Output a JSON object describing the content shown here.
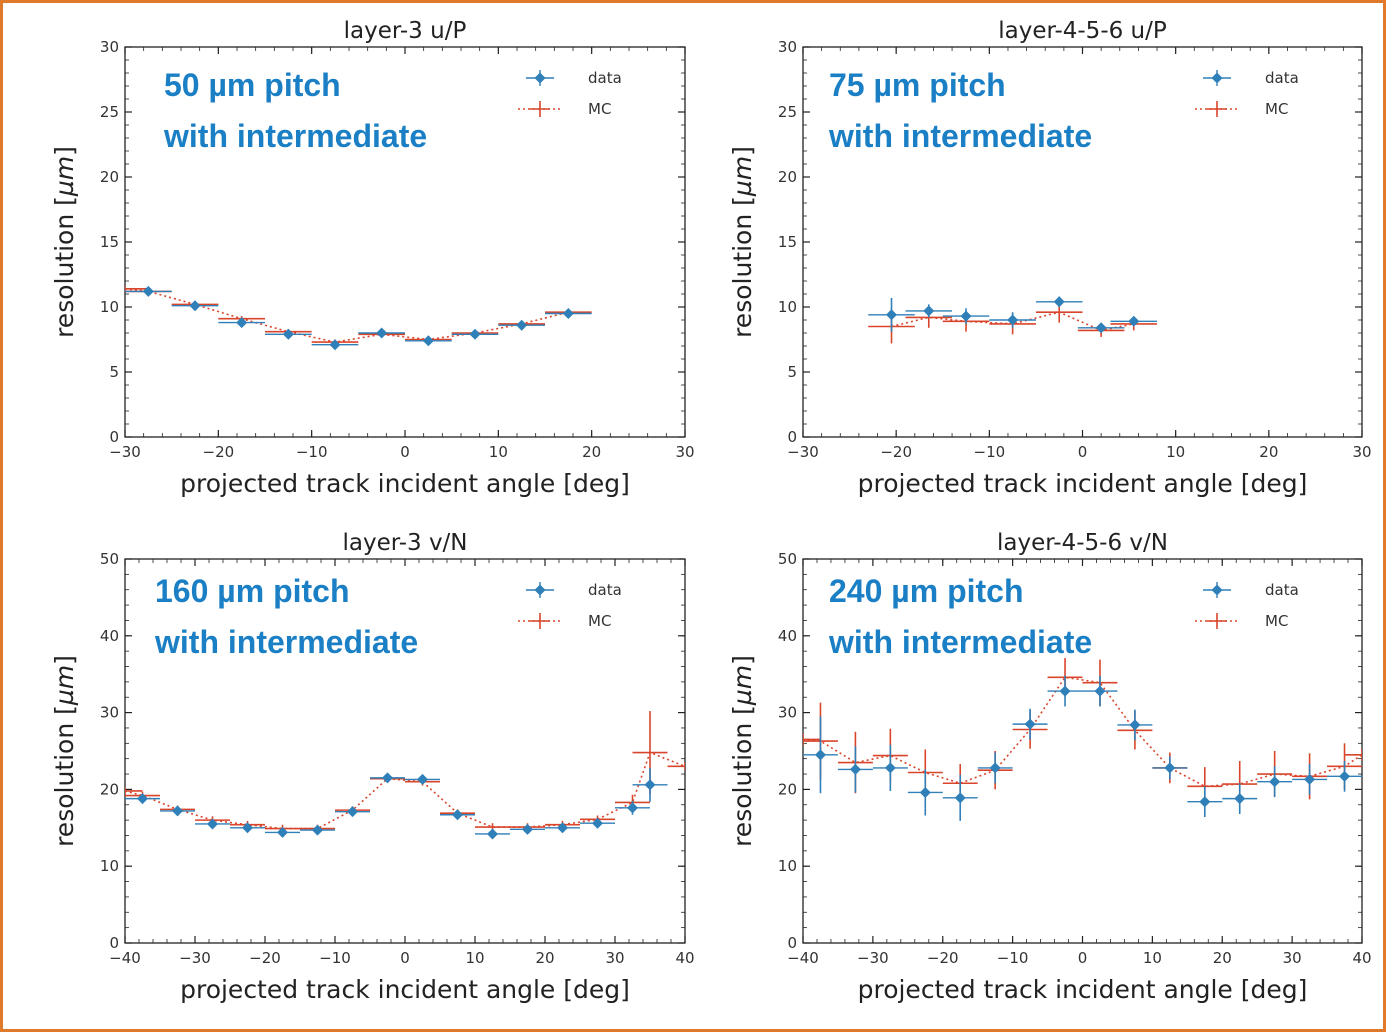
{
  "colors": {
    "frame": "#e07a2a",
    "data": "#2f7fb8",
    "mc": "#d9452b",
    "annotation": "#1a7fc4",
    "axis": "#222222"
  },
  "panels": [
    {
      "title": "layer-3 u/P",
      "annotation": [
        "50 µm pitch",
        "with intermediate"
      ],
      "legend": {
        "data": "data",
        "mc": "MC"
      },
      "xlabel": "projected track incident angle [deg]",
      "ylabel": "resolution [µm]",
      "ylabel_plain": "resolution [",
      "ylabel_unit": "µm",
      "ylabel_close": "]"
    },
    {
      "title": "layer-4-5-6 u/P",
      "annotation": [
        "75 µm pitch",
        "with intermediate"
      ],
      "legend": {
        "data": "data",
        "mc": "MC"
      },
      "xlabel": "projected track incident angle [deg]",
      "ylabel": "resolution [µm]",
      "ylabel_plain": "resolution [",
      "ylabel_unit": "µm",
      "ylabel_close": "]"
    },
    {
      "title": "layer-3 v/N",
      "annotation": [
        "160 µm pitch",
        "with intermediate"
      ],
      "legend": {
        "data": "data",
        "mc": "MC"
      },
      "xlabel": "projected track incident angle [deg]",
      "ylabel": "resolution [µm]",
      "ylabel_plain": "resolution [",
      "ylabel_unit": "µm",
      "ylabel_close": "]"
    },
    {
      "title": "layer-4-5-6 v/N",
      "annotation": [
        "240 µm pitch",
        "with intermediate"
      ],
      "legend": {
        "data": "data",
        "mc": "MC"
      },
      "xlabel": "projected track incident angle [deg]",
      "ylabel": "resolution [µm]",
      "ylabel_plain": "resolution [",
      "ylabel_unit": "µm",
      "ylabel_close": "]"
    }
  ],
  "chart_data": [
    {
      "type": "scatter",
      "title": "layer-3 u/P",
      "xlabel": "projected track incident angle [deg]",
      "ylabel": "resolution [µm]",
      "xlim": [
        -30,
        30
      ],
      "ylim": [
        0,
        30
      ],
      "xticks": [
        -30,
        -20,
        -10,
        0,
        10,
        20,
        30
      ],
      "yticks": [
        0,
        5,
        10,
        15,
        20,
        25,
        30
      ],
      "legend_position": "top-right",
      "series": [
        {
          "name": "data",
          "x": [
            -27.5,
            -22.5,
            -17.5,
            -12.5,
            -7.5,
            -2.5,
            2.5,
            7.5,
            12.5,
            17.5
          ],
          "y": [
            11.2,
            10.1,
            8.8,
            7.9,
            7.1,
            8.0,
            7.4,
            7.9,
            8.6,
            9.5
          ],
          "yerr": [
            0.3,
            0.3,
            0.3,
            0.3,
            0.3,
            0.3,
            0.3,
            0.3,
            0.3,
            0.3
          ]
        },
        {
          "name": "MC",
          "x": [
            -30,
            -27.5,
            -22.5,
            -17.5,
            -12.5,
            -7.5,
            -2.5,
            2.5,
            7.5,
            12.5,
            17.5
          ],
          "y": [
            11.4,
            11.2,
            10.2,
            9.1,
            8.1,
            7.3,
            7.9,
            7.5,
            8.0,
            8.7,
            9.6
          ],
          "yerr": [
            0.2,
            0.2,
            0.2,
            0.2,
            0.2,
            0.2,
            0.2,
            0.2,
            0.2,
            0.2,
            0.2
          ]
        }
      ]
    },
    {
      "type": "scatter",
      "title": "layer-4-5-6 u/P",
      "xlabel": "projected track incident angle [deg]",
      "ylabel": "resolution [µm]",
      "xlim": [
        -30,
        30
      ],
      "ylim": [
        0,
        30
      ],
      "xticks": [
        -30,
        -20,
        -10,
        0,
        10,
        20,
        30
      ],
      "yticks": [
        0,
        5,
        10,
        15,
        20,
        25,
        30
      ],
      "legend_position": "top-right",
      "series": [
        {
          "name": "data",
          "x": [
            -20.5,
            -16.5,
            -12.5,
            -7.5,
            -2.5,
            2.0,
            5.5
          ],
          "y": [
            9.4,
            9.7,
            9.3,
            9.0,
            10.4,
            8.4,
            8.9
          ],
          "yerr": [
            1.3,
            0.5,
            0.6,
            0.6,
            0.4,
            0.3,
            0.3
          ]
        },
        {
          "name": "MC",
          "x": [
            -20.5,
            -16.5,
            -12.5,
            -7.5,
            -2.5,
            2.0,
            5.5
          ],
          "y": [
            8.5,
            9.2,
            8.9,
            8.7,
            9.6,
            8.2,
            8.7
          ],
          "yerr": [
            1.3,
            0.8,
            0.8,
            0.8,
            0.8,
            0.5,
            0.5
          ]
        }
      ]
    },
    {
      "type": "scatter",
      "title": "layer-3 v/N",
      "xlabel": "projected track incident angle [deg]",
      "ylabel": "resolution [µm]",
      "xlim": [
        -40,
        40
      ],
      "ylim": [
        0,
        50
      ],
      "xticks": [
        -40,
        -30,
        -20,
        -10,
        0,
        10,
        20,
        30,
        40
      ],
      "yticks": [
        0,
        10,
        20,
        30,
        40,
        50
      ],
      "legend_position": "top-right",
      "series": [
        {
          "name": "data",
          "x": [
            -37.5,
            -32.5,
            -27.5,
            -22.5,
            -17.5,
            -12.5,
            -7.5,
            -2.5,
            2.5,
            7.5,
            12.5,
            17.5,
            22.5,
            27.5,
            32.5,
            35.0
          ],
          "y": [
            18.8,
            17.2,
            15.5,
            15.0,
            14.4,
            14.7,
            17.1,
            21.5,
            21.3,
            16.7,
            14.2,
            14.8,
            15.0,
            15.6,
            17.6,
            20.6
          ],
          "yerr": [
            0.6,
            0.5,
            0.6,
            0.6,
            0.6,
            0.5,
            0.6,
            0.6,
            0.6,
            0.6,
            0.6,
            0.5,
            0.6,
            0.6,
            0.9,
            2.2
          ]
        },
        {
          "name": "MC",
          "x": [
            -40,
            -37.5,
            -32.5,
            -27.5,
            -22.5,
            -17.5,
            -12.5,
            -7.5,
            -2.5,
            2.5,
            7.5,
            12.5,
            17.5,
            22.5,
            27.5,
            32.5,
            35.0,
            40.0
          ],
          "y": [
            19.8,
            19.2,
            17.4,
            16.0,
            15.4,
            14.9,
            14.9,
            17.3,
            21.4,
            21.0,
            16.9,
            15.1,
            15.1,
            15.4,
            16.1,
            18.3,
            24.8,
            23.0
          ],
          "yerr": [
            0.5,
            0.5,
            0.5,
            0.5,
            0.5,
            0.5,
            0.5,
            0.5,
            0.5,
            0.5,
            0.5,
            0.5,
            0.5,
            0.5,
            0.5,
            1.0,
            5.4,
            0.5
          ]
        }
      ]
    },
    {
      "type": "scatter",
      "title": "layer-4-5-6 v/N",
      "xlabel": "projected track incident angle [deg]",
      "ylabel": "resolution [µm]",
      "xlim": [
        -40,
        40
      ],
      "ylim": [
        0,
        50
      ],
      "xticks": [
        -40,
        -30,
        -20,
        -10,
        0,
        10,
        20,
        30,
        40
      ],
      "yticks": [
        0,
        10,
        20,
        30,
        40,
        50
      ],
      "legend_position": "top-right",
      "series": [
        {
          "name": "data",
          "x": [
            -37.5,
            -32.5,
            -27.5,
            -22.5,
            -17.5,
            -12.5,
            -7.5,
            -2.5,
            2.5,
            7.5,
            12.5,
            17.5,
            22.5,
            27.5,
            32.5,
            37.5
          ],
          "y": [
            24.5,
            22.6,
            22.8,
            19.6,
            18.9,
            22.8,
            28.5,
            32.8,
            32.8,
            28.4,
            22.8,
            18.4,
            18.8,
            21.0,
            21.3,
            21.7
          ],
          "yerr": [
            5.0,
            3.0,
            3.0,
            3.0,
            3.0,
            2.0,
            2.0,
            2.0,
            2.0,
            2.0,
            1.5,
            2.0,
            2.0,
            2.0,
            2.0,
            2.0
          ]
        },
        {
          "name": "MC",
          "x": [
            -40,
            -37.5,
            -32.5,
            -27.5,
            -22.5,
            -17.5,
            -12.5,
            -7.5,
            -2.5,
            2.5,
            7.5,
            12.5,
            17.5,
            22.5,
            27.5,
            32.5,
            37.5,
            40.0
          ],
          "y": [
            26.5,
            26.3,
            23.5,
            24.4,
            22.2,
            20.8,
            22.5,
            27.8,
            34.6,
            33.9,
            27.7,
            22.8,
            20.4,
            20.7,
            22.0,
            21.7,
            23.0,
            24.5
          ],
          "yerr": [
            0.8,
            5.0,
            4.0,
            3.5,
            3.0,
            2.5,
            2.5,
            2.5,
            2.5,
            3.0,
            2.5,
            2.0,
            2.5,
            3.0,
            3.0,
            3.0,
            3.0,
            0.8
          ]
        }
      ]
    }
  ]
}
